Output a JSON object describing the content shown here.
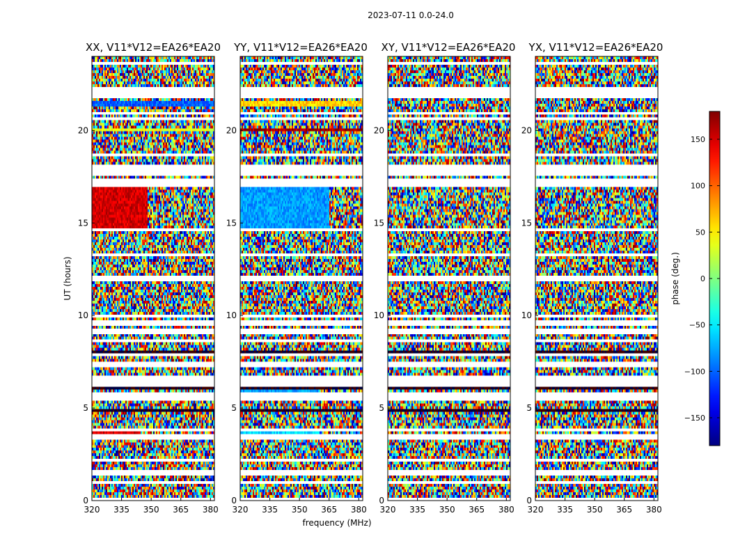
{
  "chart_data": {
    "type": "heatmap",
    "title": "2023-07-11 0.0-24.0",
    "xlabel": "frequency (MHz)",
    "ylabel": "UT (hours)",
    "xlim": [
      320,
      382
    ],
    "ylim": [
      0,
      24
    ],
    "x_ticks": [
      320,
      335,
      350,
      365,
      380
    ],
    "y_ticks": [
      0,
      5,
      10,
      15,
      20
    ],
    "panels": [
      {
        "name": "XX, V11*V12=EA26*EA20",
        "pol": "XX"
      },
      {
        "name": "YY, V11*V12=EA26*EA20",
        "pol": "YY"
      },
      {
        "name": "XY, V11*V12=EA26*EA20",
        "pol": "XY"
      },
      {
        "name": "YX, V11*V12=EA26*EA20",
        "pol": "YX"
      }
    ],
    "colorbar": {
      "label": "phase (deg.)",
      "range": [
        -180,
        180
      ],
      "ticks": [
        150,
        100,
        50,
        0,
        -50,
        -100,
        -150
      ],
      "colormap": "jet"
    },
    "coherent_phase_deg": {
      "XX": {
        "t14_6_to_17": 150,
        "t8_6": -110,
        "t5_8": 140,
        "t21_5": -100,
        "t3_7": 150
      },
      "YY": {
        "t14_6_to_17": -80,
        "t8_6": 90,
        "t5_8": -80,
        "t21_5": 60,
        "t3_7": -60
      },
      "XY": {
        "note": "noise"
      },
      "YX": {
        "note": "noise"
      }
    },
    "flagged_hours": [
      0.1,
      0.95,
      1.5,
      2.2,
      3.35,
      3.55,
      3.85,
      5.55,
      5.8,
      6.3,
      6.6,
      7.35,
      7.9,
      8.6,
      9.15,
      9.6,
      10.0,
      11.9,
      12.05,
      13.3,
      14.6,
      17.05,
      17.25,
      17.7,
      18.0,
      18.65,
      20.6,
      20.95,
      21.9,
      22.2,
      23.6
    ]
  }
}
